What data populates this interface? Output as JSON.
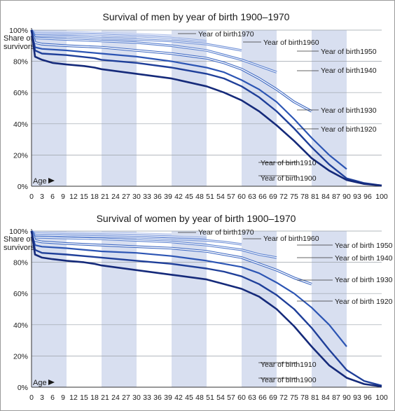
{
  "colors": {
    "band": "#d8dff0",
    "grid": "#9aa0a8",
    "axis": "#333333",
    "series": [
      "#152a7a",
      "#1f3f99",
      "#2c55b4",
      "#3d68c2",
      "#587fcf",
      "#7393d8",
      "#93abe2",
      "#b5c5ec"
    ]
  },
  "chart_data": [
    {
      "type": "line",
      "title": "Survival of men by year of birth 1900–1970",
      "ylabel": "Share of survivors",
      "xlabel": "Age",
      "ylim": [
        0,
        100
      ],
      "xlim": [
        0,
        100
      ],
      "xticks": [
        0,
        3,
        6,
        9,
        12,
        15,
        18,
        21,
        24,
        27,
        30,
        33,
        36,
        39,
        42,
        45,
        48,
        51,
        54,
        57,
        60,
        63,
        66,
        69,
        72,
        75,
        78,
        81,
        84,
        87,
        90,
        93,
        96,
        100
      ],
      "yticks": [
        "0%",
        "20%",
        "40%",
        "60%",
        "80%",
        "100%"
      ],
      "series": [
        {
          "name": "Year of birth1900",
          "x": [
            0,
            1,
            3,
            6,
            10,
            15,
            18,
            20,
            30,
            40,
            50,
            55,
            60,
            65,
            70,
            75,
            80,
            85,
            90,
            95,
            100
          ],
          "values": [
            100,
            83,
            81,
            79,
            78,
            77,
            76,
            75,
            72,
            69,
            64,
            60,
            55,
            48,
            39,
            29,
            18,
            10,
            4,
            1.5,
            0.5
          ]
        },
        {
          "name": "Year of birth1910",
          "x": [
            0,
            1,
            3,
            10,
            18,
            20,
            30,
            40,
            50,
            55,
            60,
            65,
            70,
            75,
            80,
            85,
            90,
            95,
            100
          ],
          "values": [
            100,
            87,
            85,
            84,
            82,
            81,
            79,
            76,
            72,
            69,
            64,
            57,
            48,
            37,
            25,
            14,
            5,
            2,
            0.5
          ]
        },
        {
          "name": "Year of birth1920",
          "x": [
            0,
            1,
            3,
            10,
            20,
            30,
            40,
            50,
            55,
            60,
            65,
            70,
            75,
            80,
            85,
            90
          ],
          "values": [
            100,
            89,
            88,
            87,
            85,
            83,
            80,
            76,
            73,
            68,
            62,
            54,
            43,
            31,
            20,
            11
          ]
        },
        {
          "name": "Year of birth1930",
          "x": [
            0,
            1,
            3,
            10,
            20,
            30,
            40,
            50,
            55,
            60,
            65,
            70,
            75,
            80
          ],
          "values": [
            100,
            92,
            91,
            90,
            89,
            87,
            85,
            82,
            79,
            75,
            69,
            62,
            54,
            48
          ]
        },
        {
          "name": "Year of birth1940",
          "x": [
            0,
            1,
            10,
            20,
            30,
            40,
            50,
            55,
            60,
            65,
            70
          ],
          "values": [
            100,
            95,
            94,
            93,
            92,
            90,
            87,
            84,
            81,
            77,
            73
          ]
        },
        {
          "name": "Year of birth1950",
          "x": [
            0,
            1,
            10,
            20,
            30,
            40,
            50,
            55,
            60
          ],
          "values": [
            100,
            96.5,
            96,
            95,
            94,
            93,
            91,
            89,
            87
          ]
        },
        {
          "name": "Year of birth1960",
          "x": [
            0,
            1,
            10,
            20,
            30,
            40,
            50
          ],
          "values": [
            100,
            98,
            97.5,
            97,
            96,
            95,
            93
          ]
        },
        {
          "name": "Year of birth1970",
          "x": [
            0,
            1,
            10,
            20,
            30,
            40
          ],
          "values": [
            100,
            99,
            98.8,
            98.2,
            97.5,
            96.5
          ]
        }
      ]
    },
    {
      "type": "line",
      "title": "Survival of women by year of birth 1900–1970",
      "ylabel": "Share of survivors",
      "xlabel": "Age",
      "ylim": [
        0,
        100
      ],
      "xlim": [
        0,
        100
      ],
      "xticks": [
        0,
        3,
        6,
        9,
        12,
        15,
        18,
        21,
        24,
        27,
        30,
        33,
        36,
        39,
        42,
        45,
        48,
        51,
        54,
        57,
        60,
        63,
        66,
        69,
        72,
        75,
        78,
        81,
        84,
        87,
        90,
        93,
        96,
        100
      ],
      "yticks": [
        "0%",
        "20%",
        "40%",
        "60%",
        "80%",
        "100%"
      ],
      "series": [
        {
          "name": "Year of birth1900",
          "x": [
            0,
            1,
            3,
            6,
            10,
            15,
            18,
            20,
            30,
            40,
            50,
            55,
            60,
            65,
            70,
            75,
            80,
            85,
            90,
            95,
            100
          ],
          "values": [
            100,
            85,
            83,
            82,
            81,
            80,
            79,
            78,
            75,
            72,
            69,
            66,
            63,
            58,
            50,
            39,
            26,
            14,
            6,
            2,
            0.5
          ]
        },
        {
          "name": "Year of birth1910",
          "x": [
            0,
            1,
            3,
            10,
            20,
            30,
            40,
            50,
            55,
            60,
            65,
            70,
            75,
            80,
            85,
            90,
            95,
            100
          ],
          "values": [
            100,
            88,
            86,
            85,
            83,
            81,
            79,
            76,
            74,
            71,
            66,
            59,
            50,
            38,
            24,
            11,
            4,
            1
          ]
        },
        {
          "name": "Year of birth 1920",
          "x": [
            0,
            1,
            3,
            10,
            20,
            30,
            40,
            50,
            55,
            60,
            65,
            70,
            75,
            80,
            85,
            90
          ],
          "values": [
            100,
            91,
            90,
            89,
            87,
            86,
            84,
            81,
            79,
            77,
            73,
            67,
            60,
            51,
            40,
            26
          ]
        },
        {
          "name": "Year of birth 1930",
          "x": [
            0,
            1,
            3,
            10,
            20,
            30,
            40,
            50,
            55,
            60,
            65,
            70,
            75,
            80
          ],
          "values": [
            100,
            94,
            93,
            92,
            91,
            90,
            89,
            87,
            85,
            83,
            79,
            75,
            70,
            66
          ]
        },
        {
          "name": "Year of birth 1940",
          "x": [
            0,
            1,
            10,
            20,
            30,
            40,
            50,
            55,
            60,
            65,
            70
          ],
          "values": [
            100,
            96,
            95.5,
            95,
            94,
            93,
            91,
            89.5,
            88,
            85,
            83
          ]
        },
        {
          "name": "Year of birth 1950",
          "x": [
            0,
            1,
            10,
            20,
            30,
            40,
            50,
            55,
            60
          ],
          "values": [
            100,
            97.5,
            97,
            96.5,
            96,
            95,
            94,
            93,
            91.5
          ]
        },
        {
          "name": "Year of birth1960",
          "x": [
            0,
            1,
            10,
            20,
            30,
            40,
            50
          ],
          "values": [
            100,
            98.5,
            98,
            97.6,
            97,
            96.5,
            95.5
          ]
        },
        {
          "name": "Year of birth1970",
          "x": [
            0,
            1,
            10,
            20,
            30,
            40
          ],
          "values": [
            100,
            99.3,
            99,
            98.8,
            98.4,
            97.8
          ]
        }
      ]
    }
  ]
}
